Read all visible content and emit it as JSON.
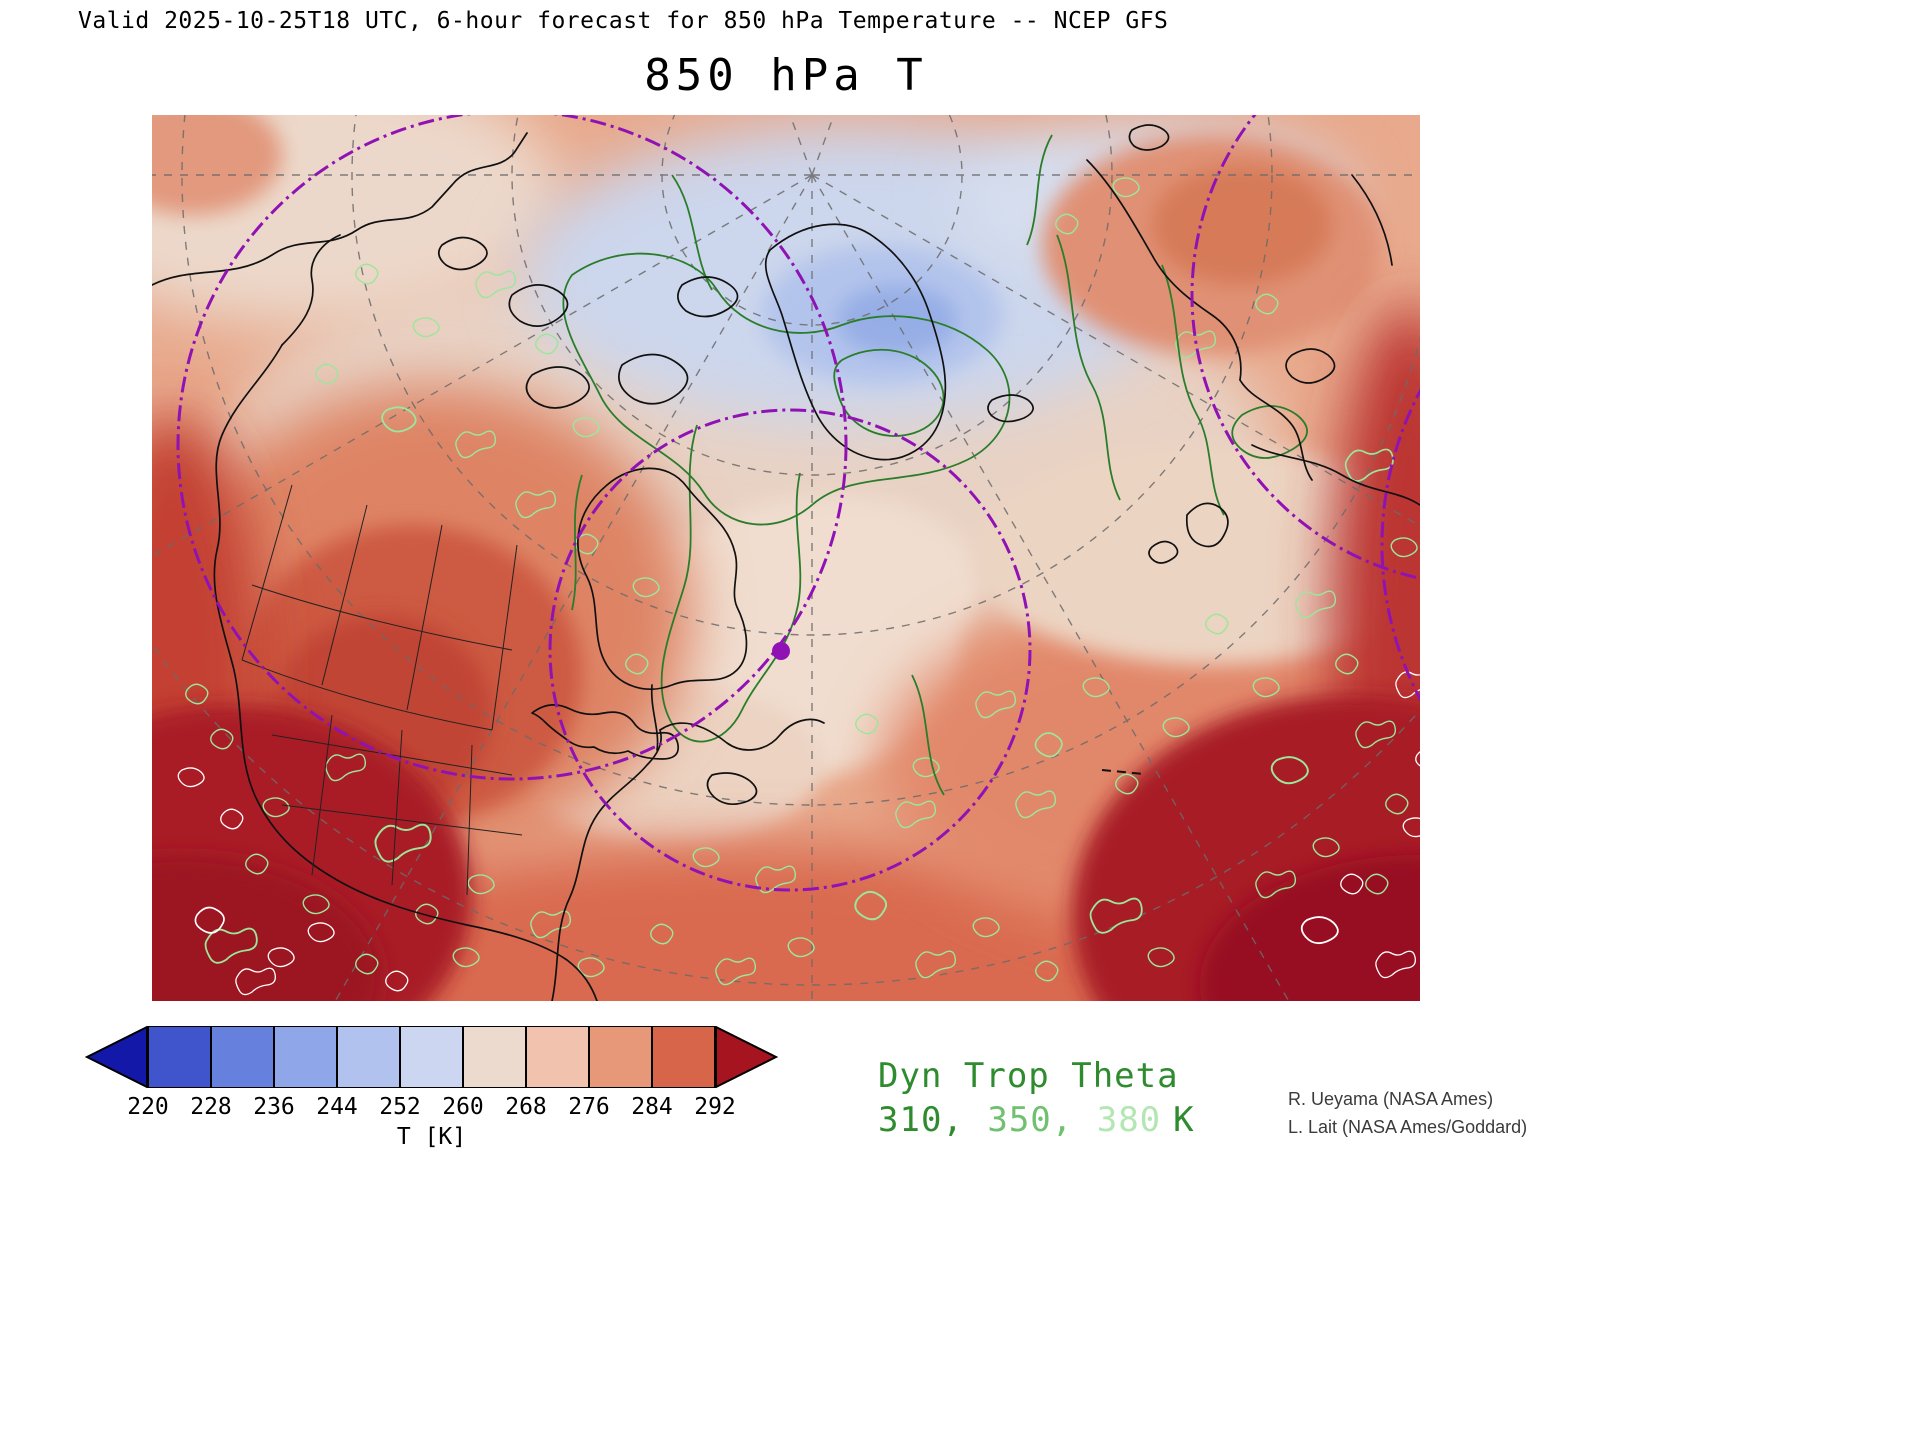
{
  "header": {
    "valid_line": "Valid 2025-10-25T18 UTC, 6-hour forecast for 850 hPa Temperature -- NCEP GFS",
    "title": "850 hPa T"
  },
  "colorbar": {
    "tick_labels": [
      "220",
      "228",
      "236",
      "244",
      "252",
      "260",
      "268",
      "276",
      "284",
      "292"
    ],
    "unit_label": "T [K]",
    "segment_colors": [
      "#4055cc",
      "#6680dd",
      "#8fa6e9",
      "#b1c2ef",
      "#ccd6f0",
      "#ecdacf",
      "#f1c3ae",
      "#e69878",
      "#d7654a"
    ],
    "left_arrow_color": "#1418a8",
    "right_arrow_color": "#a61420"
  },
  "overlay_legend": {
    "title": "Dyn Trop Theta",
    "title_color": "#2e8b2e",
    "unit": "K",
    "unit_color": "#2e8b2e",
    "levels": [
      {
        "label": "310",
        "color": "#2e8b2e"
      },
      {
        "label": "350",
        "color": "#6fc06f"
      },
      {
        "label": "380",
        "color": "#b2e6b2"
      }
    ]
  },
  "credits": [
    "R. Ueyama (NASA Ames)",
    "L. Lait (NASA Ames/Goddard)"
  ],
  "map_colors": {
    "theta_contour_green": "#2a7d2a",
    "speckle_light_green": "#9ce69c",
    "range_circle_purple": "#9012b5",
    "coastline_black": "#111111",
    "graticule_gray": "#6b6b6b"
  },
  "chart_data": {
    "type": "heatmap",
    "title": "850 hPa T",
    "field": "850 hPa Temperature",
    "model": "NCEP GFS",
    "valid_time": "2025-10-25T18 UTC",
    "forecast": "6-hour forecast",
    "units": "K",
    "colorbar_levels_K": [
      220,
      228,
      236,
      244,
      252,
      260,
      268,
      276,
      284,
      292
    ],
    "colorbar_colors": [
      "#1418a8",
      "#4055cc",
      "#6680dd",
      "#8fa6e9",
      "#b1c2ef",
      "#ccd6f0",
      "#ecdacf",
      "#f1c3ae",
      "#e69878",
      "#d7654a",
      "#a61420"
    ],
    "overlay_contours": {
      "name": "Dyn Trop Theta",
      "levels_K": [
        310,
        350,
        380
      ]
    },
    "layout_hints": {
      "projection": "polar stereographic over North America / Arctic",
      "cold_minimum": "blue pool < 252 K over Arctic Ocean near top center",
      "warm_maximum": "dark red > 292 K in bottom-left, bottom-right corners and right edge",
      "marker": "purple dot with dash-dot range circles over eastern Canada",
      "legend_position": "colorbar bottom left, theta legend bottom center-right"
    }
  }
}
